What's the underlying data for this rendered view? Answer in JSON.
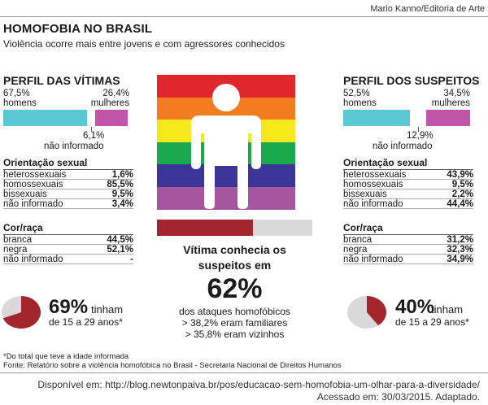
{
  "credit": "Mario Kanno/Editoria de Arte",
  "title": "HOMOFOBIA NO BRASIL",
  "subtitle": "Violência ocorre mais entre jovens e com agressores conhecidos",
  "colors": {
    "homens": "#5bc8d6",
    "mulheres": "#c155a8",
    "pie_fill": "#a3262f",
    "pie_rest": "#d9d9d9",
    "rainbow": [
      "#e0272d",
      "#f47c20",
      "#f7e81c",
      "#19a84b",
      "#3a3596",
      "#a6569f"
    ]
  },
  "victims": {
    "title": "PERFIL DAS VÍTIMAS",
    "homens_pct": "67,5%",
    "homens_label": "homens",
    "mulheres_pct": "26,4%",
    "mulheres_label": "mulheres",
    "ni_pct": "6,1%",
    "ni_label": "não informado",
    "split": {
      "homens": 67.5,
      "ni": 6.1,
      "mulheres": 26.4
    },
    "orientation_title": "Orientação sexual",
    "orientation": [
      {
        "label": "heterossexuais",
        "value": "1,6%"
      },
      {
        "label": "homossexuais",
        "value": "85,5%"
      },
      {
        "label": "bissexuais",
        "value": "9,5%"
      },
      {
        "label": "não informado",
        "value": "3,4%"
      }
    ],
    "race_title": "Cor/raça",
    "race": [
      {
        "label": "branca",
        "value": "44,5%"
      },
      {
        "label": "negra",
        "value": "52,1%"
      },
      {
        "label": "não informado",
        "value": "-"
      }
    ],
    "age_pct": "69%",
    "age_pct_value": 69,
    "age_text1": "tinham",
    "age_text2": "de 15 a 29 anos*"
  },
  "suspects": {
    "title": "PERFIL DOS SUSPEITOS",
    "homens_pct": "52,5%",
    "homens_label": "homens",
    "mulheres_pct": "34,5%",
    "mulheres_label": "mulheres",
    "ni_pct": "12,9%",
    "ni_label": "não informado",
    "split": {
      "homens": 52.5,
      "ni": 12.9,
      "mulheres": 34.5
    },
    "orientation_title": "Orientação sexual",
    "orientation": [
      {
        "label": "heterossexuais",
        "value": "43,9%"
      },
      {
        "label": "homossexuais",
        "value": "9,5%"
      },
      {
        "label": "bissexuais",
        "value": "2,2%"
      },
      {
        "label": "não informado",
        "value": "44,4%"
      }
    ],
    "race_title": "Cor/raça",
    "race": [
      {
        "label": "branca",
        "value": "31,2%"
      },
      {
        "label": "negra",
        "value": "32,3%"
      },
      {
        "label": "não informado",
        "value": "34,9%"
      }
    ],
    "age_pct": "40%",
    "age_pct_value": 40,
    "age_text1": "tinham",
    "age_text2": "de 15 a 29 anos*"
  },
  "center": {
    "knew_line1": "Vítima conhecia os",
    "knew_line2": "suspeitos em",
    "knew_pct": "62%",
    "knew_pct_value": 62,
    "line_a": "dos ataques homofóbicos",
    "line_b": "> 38,2% eram familiares",
    "line_c": "> 35,8% eram vizinhos"
  },
  "footnote1": "*Do total que teve a idade informada",
  "footnote2": "Fonte: Relatório sobre a violência homofóbica no Brasil - Secretaria Nacional de Direitos Humanos",
  "source_line1": "Disponível em: http://blog.newtonpaiva.br/pos/educacao-sem-homofobia-um-olhar-para-a-diversidade/",
  "source_line2": "Acessado em: 30/03/2015. Adaptado."
}
